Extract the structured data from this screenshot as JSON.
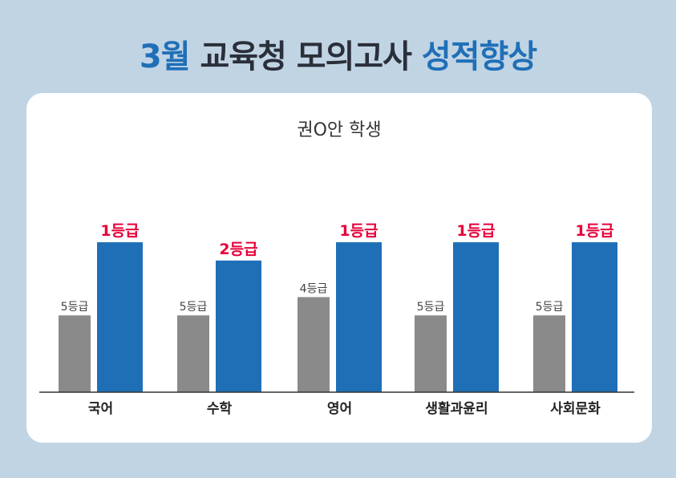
{
  "headline": {
    "part1": "3월",
    "part2": "교육청 모의고사",
    "part3": "성적향상"
  },
  "chart_data": {
    "type": "bar",
    "title": "권O안 학생",
    "categories": [
      "국어",
      "수학",
      "영어",
      "생활과윤리",
      "사회문화"
    ],
    "series": [
      {
        "values": [
          5,
          5,
          4,
          5,
          5
        ],
        "labels": [
          "5등급",
          "5등급",
          "4등급",
          "5등급",
          "5등급"
        ]
      },
      {
        "values": [
          1,
          2,
          1,
          1,
          1
        ],
        "labels": [
          "1등급",
          "2등급",
          "1등급",
          "1등급",
          "1등급"
        ]
      }
    ],
    "grade_scale": "1 (best) to 9",
    "ylim": [
      0,
      9
    ],
    "grid": false,
    "legend": "none",
    "colors": {
      "before_bar": "#8a8a8a",
      "after_bar": "#1f6fb7",
      "after_label": "#e6003a",
      "before_label": "#444444"
    }
  }
}
